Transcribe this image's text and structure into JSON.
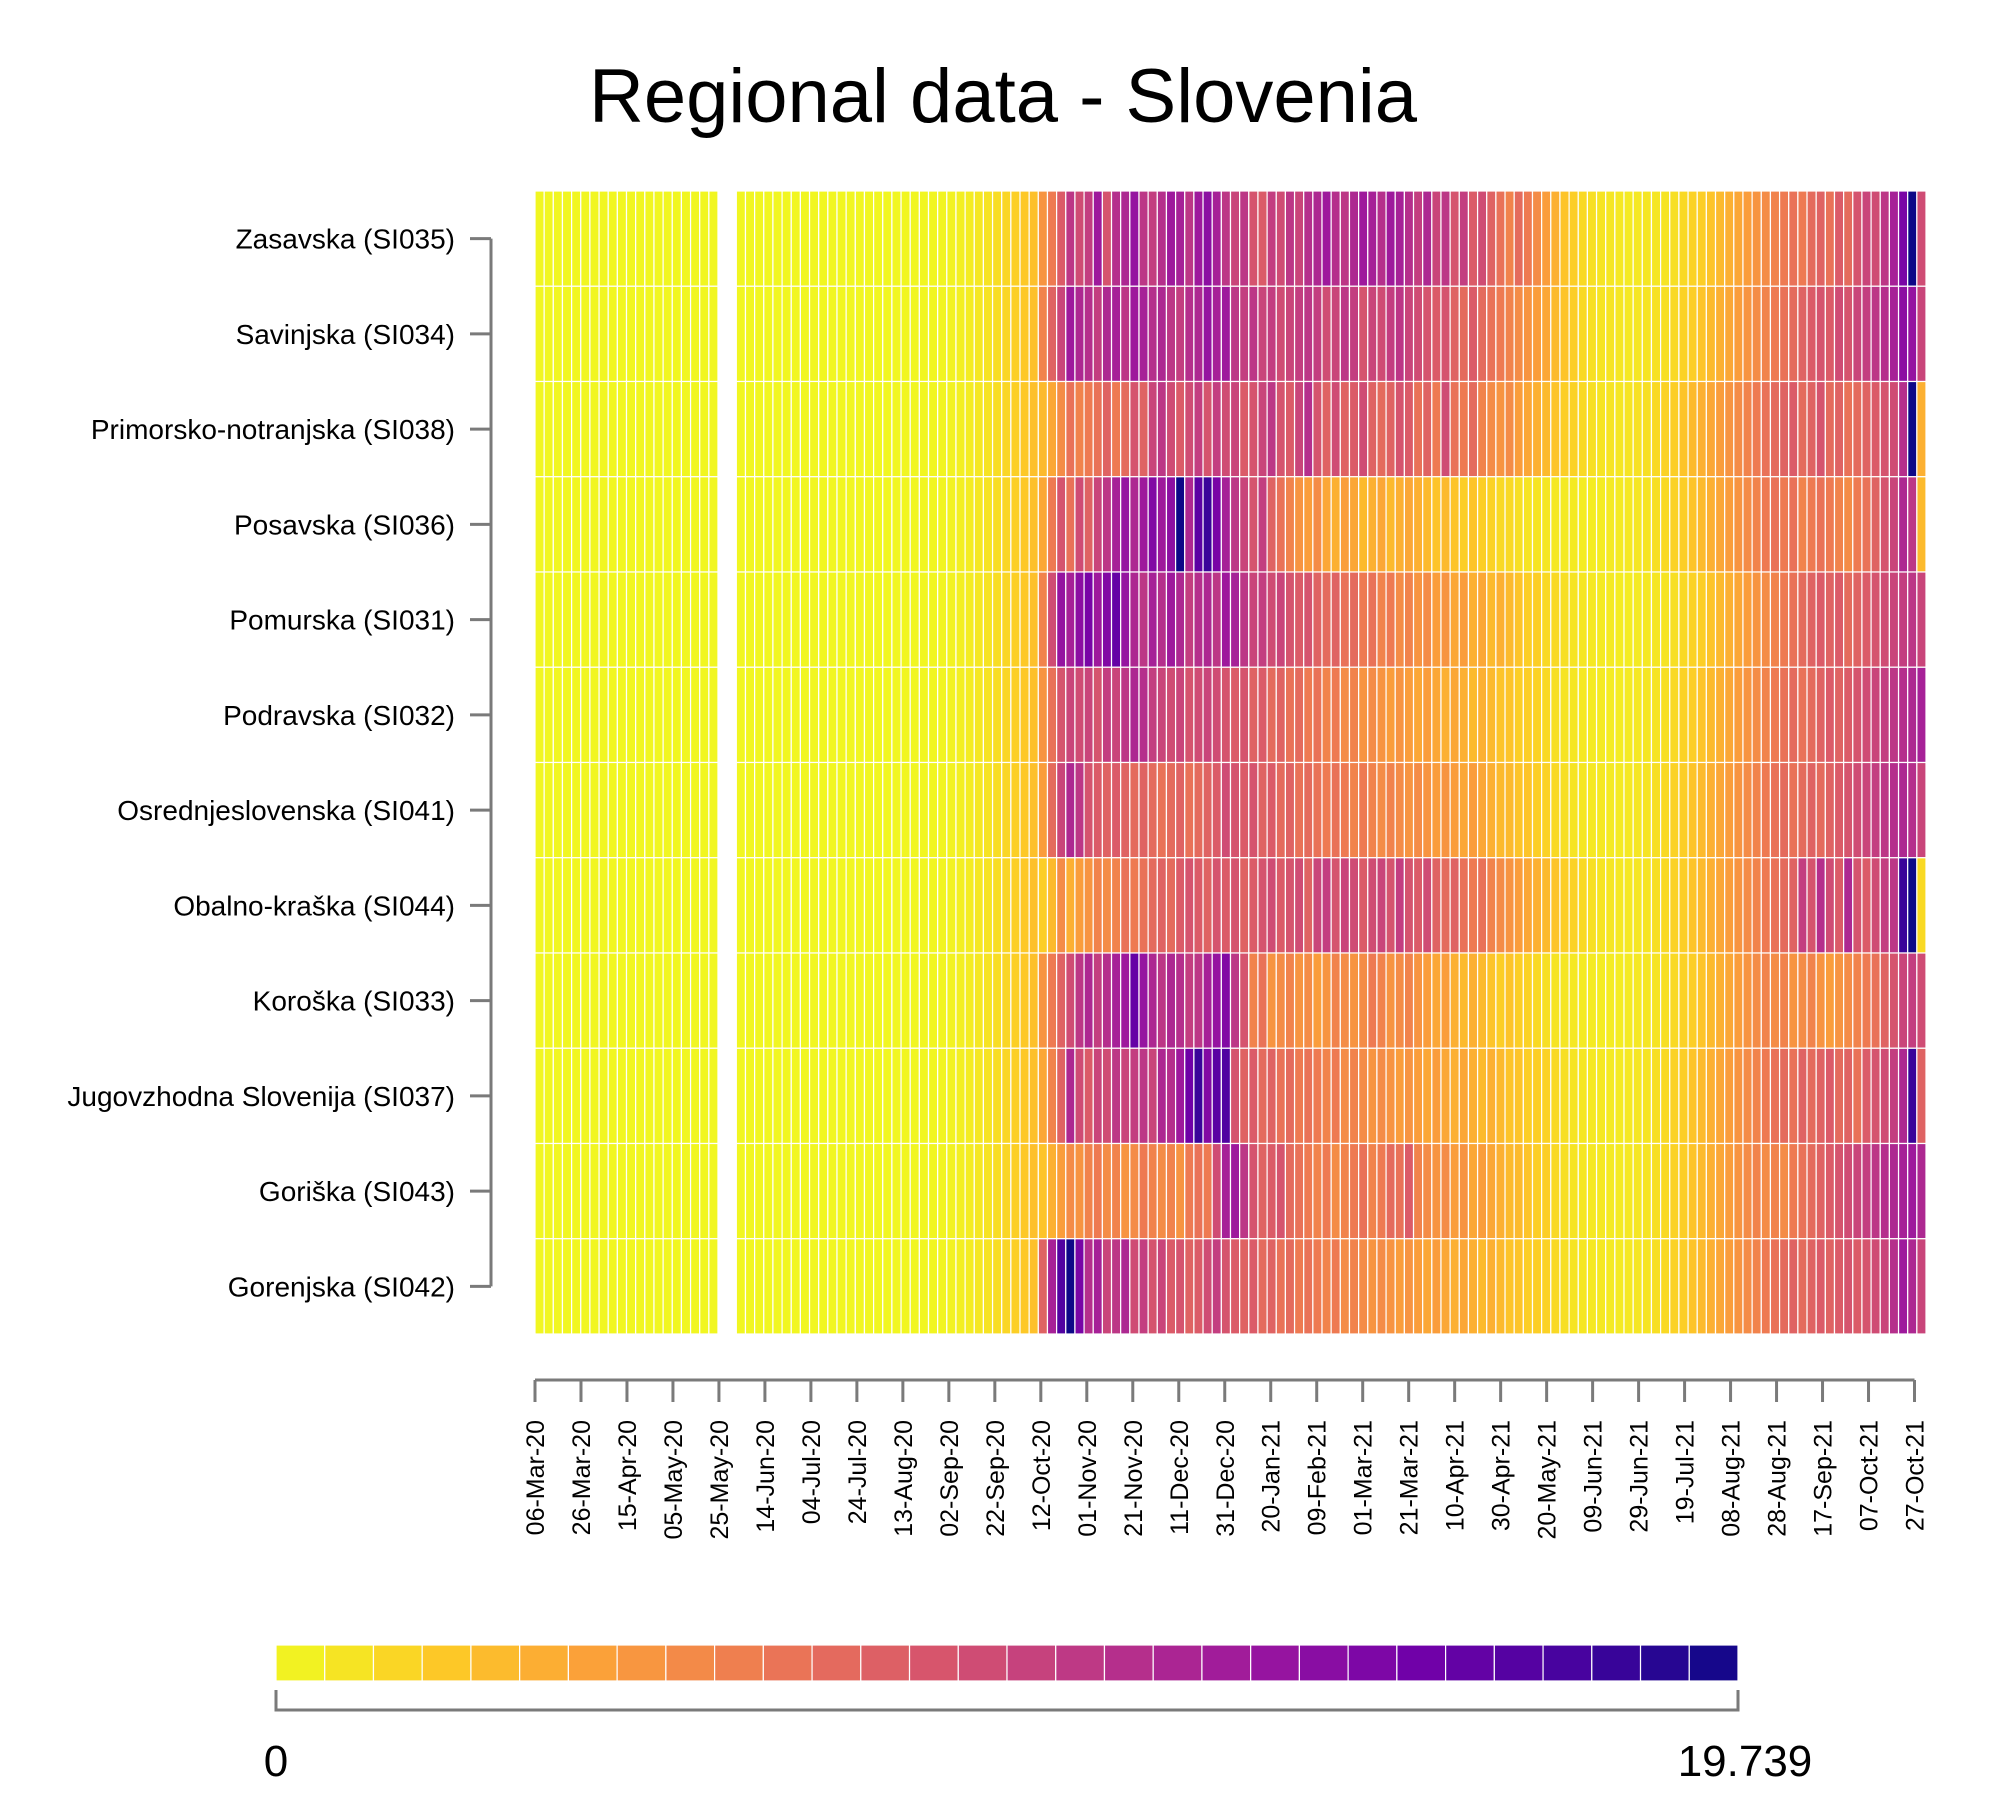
{
  "chart_data": {
    "type": "heatmap",
    "title": "Regional data - Slovenia",
    "rows": [
      "Zasavska (SI035)",
      "Savinjska (SI034)",
      "Primorsko-notranjska (SI038)",
      "Posavska (SI036)",
      "Pomurska (SI031)",
      "Podravska (SI032)",
      "Osrednjeslovenska (SI041)",
      "Obalno-kraška (SI044)",
      "Koroška (SI033)",
      "Jugovzhodna Slovenija (SI037)",
      "Goriška (SI043)",
      "Gorenjska (SI042)"
    ],
    "x_tick_labels": [
      "06-Mar-20",
      "26-Mar-20",
      "15-Apr-20",
      "05-May-20",
      "25-May-20",
      "14-Jun-20",
      "04-Jul-20",
      "24-Jul-20",
      "13-Aug-20",
      "02-Sep-20",
      "22-Sep-20",
      "12-Oct-20",
      "01-Nov-20",
      "21-Nov-20",
      "11-Dec-20",
      "31-Dec-20",
      "20-Jan-21",
      "09-Feb-21",
      "01-Mar-21",
      "21-Mar-21",
      "10-Apr-21",
      "30-Apr-21",
      "20-May-21",
      "09-Jun-21",
      "29-Jun-21",
      "19-Jul-21",
      "08-Aug-21",
      "28-Aug-21",
      "17-Sep-21",
      "07-Oct-21",
      "27-Oct-21"
    ],
    "x_range": [
      "06-Mar-20",
      "31-Oct-21"
    ],
    "column_step_days": 4,
    "missing_range": [
      "26-May-20",
      "29-May-20"
    ],
    "color_range": [
      0,
      19.739
    ],
    "colormap": "plasma (reversed)",
    "legend_labels": [
      "0",
      "19.739"
    ],
    "legend_placement": "bottom",
    "values": {
      "columns": [
        "12-Oct-20",
        "16-Oct-20",
        "20-Oct-20",
        "24-Oct-20",
        "28-Oct-20",
        "01-Nov-20",
        "05-Nov-20",
        "09-Nov-20",
        "13-Nov-20",
        "17-Nov-20",
        "21-Nov-20",
        "25-Nov-20",
        "29-Nov-20",
        "03-Dec-20",
        "07-Dec-20",
        "11-Dec-20",
        "15-Dec-20",
        "19-Dec-20",
        "23-Dec-20",
        "27-Dec-20",
        "31-Dec-20",
        "04-Jan-21",
        "08-Jan-21",
        "12-Jan-21",
        "16-Jan-21",
        "20-Jan-21",
        "24-Jan-21",
        "28-Jan-21",
        "01-Feb-21",
        "05-Feb-21",
        "09-Feb-21",
        "13-Feb-21",
        "17-Feb-21",
        "21-Feb-21",
        "25-Feb-21",
        "01-Mar-21",
        "05-Mar-21",
        "09-Mar-21",
        "13-Mar-21",
        "17-Mar-21",
        "21-Mar-21",
        "25-Mar-21",
        "29-Mar-21",
        "02-Apr-21",
        "06-Apr-21",
        "10-Apr-21",
        "14-Apr-21",
        "18-Apr-21",
        "22-Apr-21",
        "26-Apr-21",
        "30-Apr-21",
        "04-May-21",
        "08-May-21",
        "12-May-21",
        "16-May-21",
        "20-May-21",
        "24-May-21",
        "28-May-21",
        "01-Jun-21",
        "05-Jun-21",
        "09-Jun-21",
        "13-Jun-21",
        "17-Jun-21",
        "21-Jun-21",
        "25-Jun-21",
        "29-Jun-21",
        "03-Jul-21",
        "07-Jul-21",
        "11-Jul-21",
        "15-Jul-21",
        "19-Jul-21",
        "23-Jul-21",
        "27-Jul-21",
        "31-Jul-21",
        "04-Aug-21",
        "08-Aug-21",
        "12-Aug-21",
        "16-Aug-21",
        "20-Aug-21",
        "24-Aug-21",
        "28-Aug-21",
        "01-Sep-21",
        "05-Sep-21",
        "09-Sep-21",
        "13-Sep-21",
        "17-Sep-21",
        "21-Sep-21",
        "25-Sep-21",
        "29-Sep-21",
        "03-Oct-21",
        "07-Oct-21",
        "11-Oct-21",
        "15-Oct-21",
        "19-Oct-21",
        "23-Oct-21",
        "27-Oct-21",
        "31-Oct-21"
      ],
      "note_before_12-Oct-20": "near 0 in all regions",
      "Zasavska (SI035)": [
        5.0,
        6.5,
        8.5,
        11.0,
        9.5,
        10.5,
        13.0,
        9.0,
        11.5,
        12.0,
        13.5,
        11.0,
        10.5,
        11.5,
        13.0,
        12.5,
        11.0,
        13.0,
        14.0,
        12.5,
        11.0,
        10.0,
        11.0,
        9.0,
        8.5,
        10.5,
        9.5,
        11.0,
        10.0,
        11.5,
        12.0,
        13.0,
        11.5,
        11.0,
        12.0,
        13.0,
        12.5,
        11.5,
        13.0,
        12.5,
        11.5,
        10.5,
        12.0,
        10.0,
        11.0,
        9.0,
        10.5,
        8.5,
        9.5,
        8.0,
        7.0,
        6.0,
        7.5,
        6.5,
        5.5,
        4.5,
        3.5,
        2.5,
        2.0,
        1.5,
        1.2,
        1.0,
        0.9,
        0.8,
        0.7,
        0.8,
        0.9,
        0.9,
        1.0,
        1.2,
        1.5,
        1.8,
        2.0,
        2.5,
        3.0,
        3.5,
        4.0,
        4.5,
        5.0,
        5.5,
        6.0,
        6.5,
        7.0,
        6.5,
        7.5,
        8.0,
        7.0,
        8.5,
        7.5,
        9.0,
        10.0,
        9.5,
        11.0,
        12.5,
        15.0,
        19.7,
        9.5
      ],
      "Savinjska (SI034)": [
        6.0,
        8.0,
        10.0,
        13.0,
        12.0,
        11.5,
        10.5,
        12.0,
        12.5,
        11.0,
        13.0,
        12.5,
        11.5,
        12.0,
        11.0,
        10.5,
        11.5,
        12.0,
        13.5,
        12.5,
        13.0,
        11.0,
        10.5,
        11.0,
        10.0,
        10.5,
        9.5,
        10.0,
        10.5,
        11.0,
        10.5,
        9.5,
        10.0,
        11.0,
        10.5,
        9.0,
        10.0,
        9.5,
        10.5,
        11.0,
        10.0,
        9.5,
        9.0,
        8.5,
        9.0,
        8.0,
        7.5,
        8.5,
        7.5,
        7.0,
        6.5,
        6.0,
        5.5,
        5.0,
        4.5,
        4.0,
        3.0,
        2.5,
        2.0,
        1.5,
        1.2,
        1.0,
        1.0,
        0.9,
        0.8,
        0.9,
        1.0,
        1.1,
        1.2,
        1.5,
        1.8,
        2.0,
        2.5,
        3.0,
        3.5,
        4.0,
        4.5,
        5.0,
        5.5,
        6.0,
        6.5,
        7.0,
        7.5,
        8.0,
        8.5,
        9.0,
        8.5,
        9.5,
        9.0,
        10.0,
        10.5,
        11.0,
        11.5,
        12.5,
        14.0,
        13.5,
        10.0
      ],
      "Primorsko-notranjska (SI038)": [
        3.0,
        4.0,
        5.5,
        7.0,
        6.0,
        6.5,
        7.0,
        8.0,
        6.5,
        7.5,
        9.0,
        8.0,
        10.0,
        11.0,
        9.5,
        8.5,
        9.5,
        10.5,
        9.0,
        10.5,
        9.5,
        10.0,
        8.5,
        9.0,
        10.0,
        11.0,
        9.0,
        8.5,
        10.0,
        11.5,
        9.0,
        8.0,
        9.5,
        8.0,
        8.5,
        9.5,
        8.0,
        7.5,
        8.0,
        9.0,
        8.5,
        7.0,
        8.0,
        6.5,
        9.5,
        7.0,
        6.5,
        7.5,
        6.0,
        5.5,
        5.0,
        5.5,
        4.5,
        4.0,
        3.5,
        3.0,
        2.5,
        2.0,
        1.8,
        1.5,
        1.2,
        1.0,
        1.0,
        0.9,
        1.0,
        1.1,
        1.2,
        1.5,
        1.8,
        2.0,
        2.5,
        3.0,
        3.5,
        4.0,
        4.5,
        5.0,
        5.5,
        6.0,
        6.5,
        7.0,
        7.5,
        8.0,
        8.5,
        7.5,
        8.0,
        9.0,
        7.5,
        8.0,
        7.0,
        7.5,
        8.0,
        8.5,
        9.0,
        9.5,
        11.5,
        19.7,
        3.5
      ],
      "Posavska (SI036)": [
        4.0,
        6.5,
        9.0,
        7.0,
        9.5,
        8.0,
        10.0,
        11.0,
        12.5,
        13.5,
        12.0,
        13.0,
        14.5,
        13.0,
        14.0,
        19.7,
        12.0,
        16.5,
        18.0,
        15.0,
        12.5,
        11.0,
        10.0,
        9.0,
        10.5,
        8.0,
        7.0,
        6.0,
        5.0,
        4.5,
        5.5,
        4.0,
        3.5,
        4.5,
        4.0,
        3.0,
        3.5,
        4.0,
        3.0,
        3.5,
        4.0,
        3.5,
        3.0,
        2.5,
        3.0,
        2.5,
        2.0,
        2.5,
        2.0,
        1.8,
        1.5,
        1.5,
        1.2,
        1.0,
        1.0,
        0.9,
        0.8,
        0.7,
        0.7,
        0.6,
        0.6,
        0.6,
        0.7,
        0.7,
        0.8,
        0.9,
        1.0,
        1.2,
        1.5,
        1.8,
        2.0,
        2.5,
        3.0,
        3.5,
        4.0,
        4.5,
        5.0,
        5.5,
        6.0,
        6.5,
        7.0,
        6.5,
        7.0,
        6.0,
        6.5,
        7.0,
        6.5,
        6.0,
        5.5,
        6.5,
        7.0,
        8.0,
        9.0,
        10.0,
        12.0,
        11.0,
        3.0
      ],
      "Pomurska (SI031)": [
        6.0,
        9.5,
        13.5,
        12.5,
        14.0,
        15.0,
        13.0,
        14.5,
        16.0,
        13.5,
        12.0,
        11.0,
        12.5,
        11.5,
        13.0,
        12.0,
        10.5,
        11.5,
        12.0,
        11.0,
        13.0,
        12.5,
        11.0,
        10.0,
        10.5,
        9.5,
        10.0,
        9.0,
        8.5,
        9.0,
        8.0,
        7.5,
        8.0,
        7.0,
        7.5,
        6.5,
        7.0,
        6.0,
        6.5,
        5.5,
        6.0,
        5.0,
        5.5,
        4.5,
        5.0,
        4.0,
        4.5,
        3.5,
        4.0,
        3.0,
        3.5,
        3.0,
        2.5,
        2.0,
        2.0,
        1.5,
        1.5,
        1.2,
        1.0,
        0.9,
        0.8,
        0.7,
        0.7,
        0.6,
        0.6,
        0.7,
        0.8,
        0.9,
        1.0,
        1.2,
        1.5,
        1.8,
        2.0,
        2.5,
        3.0,
        3.5,
        4.0,
        4.5,
        5.0,
        5.5,
        6.0,
        6.5,
        7.0,
        7.5,
        8.0,
        8.5,
        8.0,
        8.5,
        7.5,
        8.0,
        8.5,
        9.0,
        9.5,
        10.0,
        10.5,
        11.0,
        10.0
      ],
      "Podravska (SI032)": [
        5.0,
        7.0,
        9.0,
        10.0,
        9.5,
        10.0,
        9.0,
        10.5,
        10.0,
        11.0,
        12.0,
        11.5,
        10.5,
        10.0,
        9.5,
        10.0,
        9.0,
        9.5,
        10.0,
        9.5,
        9.0,
        8.5,
        9.0,
        8.0,
        8.5,
        7.5,
        8.0,
        7.0,
        7.5,
        6.5,
        7.0,
        6.0,
        6.5,
        5.5,
        6.0,
        5.0,
        5.5,
        5.0,
        4.5,
        5.0,
        4.5,
        4.0,
        4.5,
        4.0,
        3.5,
        4.0,
        3.5,
        3.0,
        3.5,
        3.0,
        2.5,
        2.5,
        2.0,
        2.0,
        1.8,
        1.5,
        1.2,
        1.0,
        0.9,
        0.8,
        0.7,
        0.7,
        0.6,
        0.6,
        0.7,
        0.8,
        0.9,
        1.0,
        1.2,
        1.5,
        1.8,
        2.0,
        2.5,
        3.0,
        3.5,
        4.0,
        4.5,
        5.0,
        5.5,
        6.0,
        6.5,
        7.0,
        7.5,
        7.0,
        7.5,
        8.0,
        8.5,
        8.0,
        8.5,
        9.0,
        9.5,
        10.0,
        10.5,
        11.0,
        11.5,
        12.0,
        12.5
      ],
      "Osrednjeslovenska (SI041)": [
        4.5,
        7.5,
        10.0,
        12.0,
        11.0,
        9.0,
        8.5,
        8.0,
        8.5,
        8.0,
        7.5,
        8.0,
        7.5,
        7.0,
        7.5,
        8.0,
        7.0,
        7.5,
        8.0,
        8.5,
        9.5,
        9.0,
        8.5,
        9.0,
        8.0,
        8.5,
        7.5,
        8.0,
        7.0,
        7.5,
        7.0,
        6.5,
        7.0,
        6.5,
        6.0,
        6.5,
        6.0,
        5.5,
        6.0,
        5.5,
        5.0,
        5.5,
        5.0,
        4.5,
        5.0,
        4.5,
        4.0,
        4.5,
        4.0,
        3.5,
        3.0,
        3.0,
        2.5,
        2.5,
        2.0,
        1.8,
        1.5,
        1.2,
        1.0,
        0.9,
        0.8,
        0.8,
        0.7,
        0.7,
        0.8,
        0.9,
        1.0,
        1.2,
        1.5,
        1.8,
        2.0,
        2.5,
        3.0,
        3.5,
        4.0,
        4.5,
        5.0,
        5.5,
        6.0,
        6.5,
        7.0,
        7.5,
        7.0,
        7.5,
        8.0,
        7.5,
        8.0,
        8.5,
        9.0,
        9.5,
        10.0,
        10.5,
        11.0,
        11.5,
        12.0,
        11.5,
        10.0
      ],
      "Obalno-kraška (SI044)": [
        2.0,
        3.0,
        5.5,
        3.5,
        4.5,
        5.0,
        6.0,
        5.5,
        6.0,
        7.0,
        6.5,
        7.0,
        7.5,
        8.0,
        7.5,
        8.5,
        9.0,
        8.5,
        8.0,
        9.0,
        8.5,
        9.0,
        8.0,
        8.5,
        9.0,
        9.5,
        8.5,
        9.0,
        9.5,
        8.0,
        10.0,
        10.5,
        9.0,
        10.0,
        9.5,
        8.5,
        9.5,
        10.0,
        9.0,
        10.5,
        9.0,
        8.5,
        9.5,
        8.0,
        7.5,
        8.0,
        7.0,
        6.5,
        7.0,
        6.0,
        5.5,
        5.0,
        4.5,
        4.0,
        3.5,
        3.0,
        2.5,
        2.0,
        1.8,
        1.5,
        1.2,
        1.0,
        0.9,
        0.8,
        0.8,
        0.9,
        1.0,
        1.2,
        1.5,
        1.8,
        2.0,
        2.5,
        3.0,
        3.5,
        4.0,
        4.5,
        5.0,
        5.5,
        6.0,
        6.5,
        7.0,
        7.5,
        8.0,
        10.5,
        9.0,
        11.5,
        9.5,
        8.5,
        12.0,
        9.0,
        8.5,
        9.5,
        10.5,
        11.0,
        18.0,
        19.7,
        1.5
      ],
      "Koroška (SI033)": [
        5.0,
        6.5,
        8.0,
        9.5,
        11.0,
        12.0,
        10.5,
        11.5,
        12.5,
        13.0,
        16.0,
        13.5,
        12.0,
        11.0,
        12.0,
        11.5,
        10.5,
        11.0,
        12.5,
        13.5,
        14.5,
        11.0,
        9.0,
        6.0,
        7.0,
        5.0,
        5.5,
        6.0,
        5.0,
        5.5,
        4.5,
        5.0,
        6.0,
        5.5,
        5.0,
        5.5,
        6.5,
        6.0,
        5.0,
        5.5,
        6.0,
        5.0,
        4.5,
        4.0,
        4.5,
        3.5,
        3.0,
        3.5,
        3.0,
        2.5,
        2.0,
        2.5,
        2.0,
        1.8,
        1.5,
        1.2,
        1.0,
        0.9,
        0.8,
        0.7,
        0.7,
        0.6,
        0.6,
        0.6,
        0.7,
        0.8,
        0.9,
        1.0,
        1.2,
        1.5,
        1.8,
        2.0,
        2.5,
        3.0,
        3.5,
        4.0,
        4.5,
        5.0,
        5.5,
        6.0,
        5.5,
        6.0,
        5.0,
        5.5,
        6.0,
        5.0,
        4.5,
        5.0,
        5.5,
        6.0,
        6.5,
        7.0,
        8.0,
        9.0,
        10.0,
        10.5,
        9.5
      ],
      "Jugovzhodna Slovenija (SI037)": [
        4.0,
        6.0,
        8.0,
        12.0,
        9.5,
        8.5,
        10.0,
        9.5,
        11.0,
        10.0,
        10.5,
        11.0,
        10.0,
        12.0,
        11.5,
        13.0,
        15.5,
        18.0,
        14.5,
        16.5,
        17.0,
        9.0,
        8.0,
        8.5,
        7.5,
        8.0,
        7.0,
        7.5,
        6.5,
        7.0,
        6.5,
        6.0,
        6.5,
        5.5,
        6.0,
        5.5,
        5.0,
        5.5,
        5.0,
        4.5,
        5.0,
        4.5,
        4.0,
        4.5,
        4.0,
        3.5,
        4.0,
        3.5,
        3.0,
        3.5,
        3.0,
        2.5,
        2.5,
        2.0,
        2.0,
        1.8,
        1.5,
        1.2,
        1.0,
        0.9,
        0.8,
        0.8,
        0.7,
        0.7,
        0.8,
        0.9,
        1.0,
        1.2,
        1.5,
        1.8,
        2.0,
        2.5,
        3.0,
        3.5,
        4.0,
        4.5,
        5.0,
        5.5,
        6.0,
        6.5,
        7.0,
        7.5,
        7.0,
        8.0,
        7.5,
        8.0,
        8.5,
        7.5,
        8.0,
        7.0,
        8.5,
        9.0,
        9.5,
        10.5,
        12.0,
        18.0,
        8.0
      ],
      "Goriška (SI043)": [
        2.5,
        3.5,
        4.5,
        5.5,
        5.0,
        6.0,
        6.5,
        5.5,
        6.0,
        5.0,
        5.5,
        6.5,
        6.0,
        5.5,
        6.0,
        5.0,
        6.5,
        7.0,
        6.5,
        9.5,
        12.5,
        13.0,
        11.0,
        9.0,
        8.0,
        8.5,
        9.0,
        7.5,
        7.0,
        6.5,
        6.0,
        6.5,
        5.5,
        6.0,
        6.5,
        7.0,
        6.0,
        6.5,
        7.5,
        7.0,
        8.5,
        6.0,
        5.5,
        5.0,
        5.5,
        4.5,
        5.0,
        4.0,
        4.5,
        4.0,
        3.5,
        3.0,
        3.0,
        2.5,
        2.0,
        2.0,
        1.5,
        1.2,
        1.0,
        0.9,
        0.8,
        0.8,
        0.7,
        0.7,
        0.8,
        0.9,
        1.0,
        1.2,
        1.5,
        1.8,
        2.0,
        2.5,
        3.0,
        3.5,
        4.0,
        4.5,
        5.0,
        5.5,
        6.0,
        5.5,
        6.0,
        5.5,
        6.5,
        7.0,
        7.5,
        8.0,
        8.5,
        9.0,
        9.5,
        10.0,
        10.5,
        11.0,
        11.5,
        12.0,
        12.5,
        13.0,
        12.0
      ],
      "Gorenjska (SI042)": [
        8.0,
        12.5,
        17.0,
        19.7,
        15.0,
        11.5,
        12.5,
        10.0,
        11.0,
        12.0,
        9.5,
        10.5,
        9.0,
        10.0,
        8.5,
        9.0,
        8.0,
        8.5,
        9.5,
        10.5,
        9.0,
        8.5,
        8.0,
        8.5,
        7.5,
        8.0,
        7.0,
        7.5,
        6.5,
        7.0,
        6.5,
        6.0,
        6.5,
        5.5,
        6.0,
        5.5,
        5.0,
        5.5,
        5.0,
        4.5,
        5.0,
        4.5,
        4.0,
        4.5,
        4.0,
        3.5,
        4.0,
        3.5,
        3.0,
        3.5,
        3.0,
        2.5,
        2.5,
        2.0,
        2.0,
        1.8,
        1.5,
        1.2,
        1.0,
        0.9,
        0.8,
        0.8,
        0.7,
        0.7,
        0.8,
        0.9,
        1.0,
        1.2,
        1.5,
        1.8,
        2.0,
        2.5,
        3.0,
        3.5,
        4.0,
        4.5,
        5.0,
        5.5,
        6.0,
        6.5,
        7.0,
        7.5,
        8.0,
        7.5,
        8.0,
        8.5,
        8.0,
        8.5,
        9.0,
        8.5,
        9.0,
        9.5,
        10.0,
        11.5,
        13.0,
        12.0,
        10.0
      ]
    }
  }
}
